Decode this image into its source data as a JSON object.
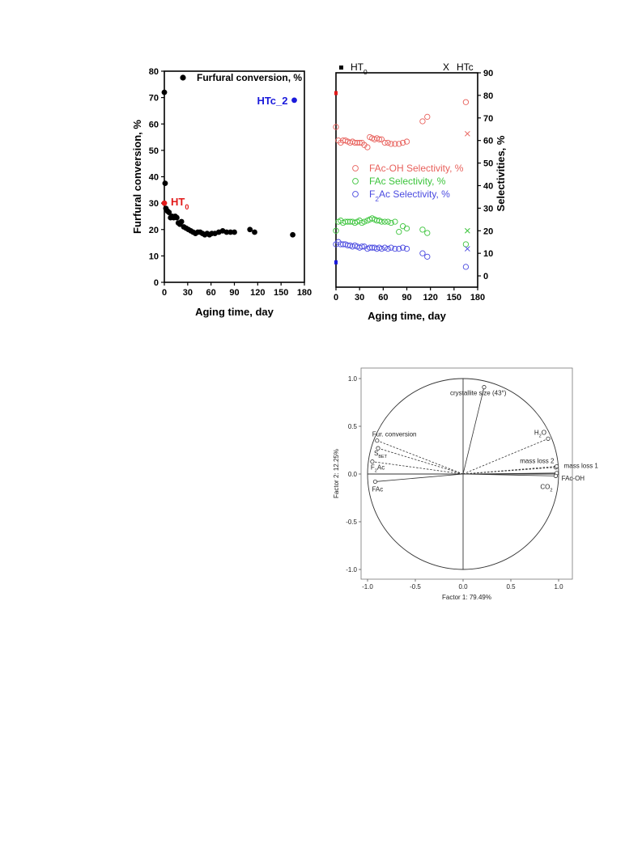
{
  "chart_data": [
    {
      "type": "scatter",
      "xlabel": "Aging time, day",
      "ylabel": "Furfural conversion, %",
      "xlim": [
        0,
        180
      ],
      "ylim": [
        0,
        80
      ],
      "xticks": [
        0,
        30,
        60,
        90,
        120,
        150,
        180
      ],
      "yticks": [
        0,
        10,
        20,
        30,
        40,
        50,
        60,
        70,
        80
      ],
      "legend": "top-center",
      "series": [
        {
          "name": "Furfural conversion, %",
          "color": "#000000",
          "x": [
            0,
            1,
            2,
            4,
            6,
            8,
            10,
            12,
            14,
            16,
            18,
            20,
            22,
            25,
            28,
            31,
            34,
            37,
            40,
            43,
            46,
            49,
            52,
            55,
            58,
            61,
            65,
            70,
            75,
            80,
            85,
            90,
            110,
            116,
            165
          ],
          "y": [
            72,
            37.5,
            28,
            27,
            26.5,
            24.5,
            25,
            24.5,
            25,
            24.5,
            22.5,
            22,
            23,
            21,
            20.5,
            20,
            19.5,
            19,
            18.5,
            19,
            19,
            18.5,
            18,
            18.5,
            18,
            18.5,
            18.5,
            19,
            19.5,
            19,
            19,
            19,
            20,
            19,
            18
          ]
        }
      ],
      "annotations": [
        {
          "label_main": "HT",
          "label_sub": "0",
          "x": 0,
          "y": 30,
          "color": "#e21a1a"
        },
        {
          "label_main": "HTc_2",
          "x": 167,
          "y": 69,
          "color": "#1a1adb"
        }
      ]
    },
    {
      "type": "scatter",
      "xlabel": "Aging time, day",
      "ylabel": "Selectivities, %",
      "xlim": [
        0,
        180
      ],
      "ylim": [
        -5,
        90
      ],
      "xticks": [
        0,
        30,
        60,
        90,
        120,
        150,
        180
      ],
      "yticks": [
        0,
        10,
        20,
        30,
        40,
        50,
        60,
        70,
        80,
        90
      ],
      "legend_top": {
        "square_label": "HT",
        "square_sub": "0",
        "x_symbol": "X",
        "x_label": "HTc"
      },
      "ht0_points": {
        "x": 0,
        "FAc-OH": 81,
        "F2Ac": 6
      },
      "htc_points": {
        "x": 167,
        "FAc-OH": 63,
        "FAc": 20,
        "F2Ac": 12
      },
      "series": [
        {
          "name": "FAc-OH Selectivity, %",
          "name_main": "FAc-OH Selectivity, %",
          "color": "#e8615c",
          "x": [
            0,
            3,
            6,
            9,
            12,
            15,
            18,
            21,
            24,
            27,
            30,
            33,
            36,
            40,
            43,
            46,
            49,
            52,
            55,
            58,
            62,
            66,
            70,
            75,
            80,
            85,
            90,
            110,
            116,
            165
          ],
          "y": [
            66,
            60,
            59,
            60,
            60,
            59.5,
            59,
            59.5,
            59,
            59,
            59,
            59,
            58,
            57,
            61.5,
            61,
            60.5,
            61,
            60.5,
            60.5,
            59,
            59,
            58.5,
            58.5,
            58.5,
            59,
            59.5,
            68.5,
            70.5,
            77
          ]
        },
        {
          "name": "FAc Selectivity, %",
          "name_main": "FAc Selectivity, %",
          "color": "#3cc43c",
          "x": [
            0,
            3,
            6,
            9,
            12,
            15,
            18,
            21,
            24,
            27,
            30,
            33,
            36,
            40,
            43,
            46,
            49,
            52,
            55,
            58,
            62,
            66,
            70,
            75,
            80,
            85,
            90,
            110,
            116,
            165
          ],
          "y": [
            20,
            24,
            24.5,
            23.5,
            24,
            24,
            24,
            24,
            23.5,
            24,
            24.5,
            23.5,
            24,
            24.5,
            25,
            25.5,
            25,
            24.5,
            24.5,
            24,
            24,
            24,
            23.5,
            24,
            19.5,
            22,
            21,
            20.5,
            19,
            14
          ]
        },
        {
          "name": "F2Ac Selectivity, %",
          "name_main": "F",
          "name_sub": "2",
          "name_rest": "Ac Selectivity, %",
          "color": "#4a4ae0",
          "x": [
            0,
            3,
            6,
            9,
            12,
            15,
            18,
            21,
            24,
            27,
            30,
            33,
            36,
            40,
            43,
            46,
            49,
            52,
            55,
            58,
            62,
            66,
            70,
            75,
            80,
            85,
            90,
            110,
            116,
            165
          ],
          "y": [
            14,
            15,
            14,
            14,
            14,
            13.5,
            13.5,
            13,
            13.5,
            13,
            12.5,
            13,
            13,
            12,
            12.5,
            12.5,
            12.5,
            12,
            12.5,
            12,
            12.5,
            12,
            12.5,
            12,
            12,
            12.5,
            12,
            10,
            8.5,
            4
          ]
        }
      ]
    },
    {
      "type": "scatter",
      "xlabel": "Factor 1: 79.49%",
      "ylabel": "Factor 2: 12.25%",
      "xlim": [
        -1.0,
        1.0
      ],
      "ylim": [
        -1.0,
        1.0
      ],
      "xticks": [
        -1.0,
        -0.5,
        0.0,
        0.5,
        1.0
      ],
      "yticks": [
        -1.0,
        -0.5,
        0.0,
        0.5,
        1.0
      ],
      "xtick_labels": [
        "-1.0",
        "-0.5",
        "0.0",
        "0.5",
        "1.0"
      ],
      "ytick_labels": [
        "-1.0",
        "-0.5",
        "0.0",
        "0.5",
        "1.0"
      ],
      "unit_circle": true,
      "variables": [
        {
          "label": "crystallite size (43°)",
          "x": 0.22,
          "y": 0.91,
          "style": "solid",
          "label_pos": "below"
        },
        {
          "label": "H2O",
          "main": "H",
          "sub": "2",
          "rest": "O",
          "x": 0.89,
          "y": 0.37,
          "style": "dashed",
          "label_pos": "above-left"
        },
        {
          "label": "mass loss 2",
          "x": 0.97,
          "y": 0.07,
          "style": "dashed",
          "label_pos": "above-left"
        },
        {
          "label": "mass loss 1",
          "x": 0.98,
          "y": 0.08,
          "style": "dashed",
          "label_pos": "right"
        },
        {
          "label": "FAc-OH",
          "x": 0.98,
          "y": 0.01,
          "style": "solid",
          "label_pos": "below-right"
        },
        {
          "label": "CO2",
          "main": "CO",
          "sub": "2",
          "rest": "",
          "x": 0.97,
          "y": -0.02,
          "style": "solid",
          "label_pos": "below-left"
        },
        {
          "label": "Fur. conversion",
          "x": -0.9,
          "y": 0.35,
          "style": "dashed",
          "label_pos": "above"
        },
        {
          "label": "SBET",
          "main": "S",
          "sub": "BET",
          "rest": "",
          "x": -0.89,
          "y": 0.27,
          "style": "dashed",
          "label_pos": "below"
        },
        {
          "label": "F2Ac",
          "main": "F",
          "sub": "2",
          "rest": "Ac",
          "x": -0.95,
          "y": 0.13,
          "style": "dashed",
          "label_pos": "below"
        },
        {
          "label": "FAc",
          "x": -0.92,
          "y": -0.08,
          "style": "solid",
          "label_pos": "below"
        }
      ]
    }
  ]
}
